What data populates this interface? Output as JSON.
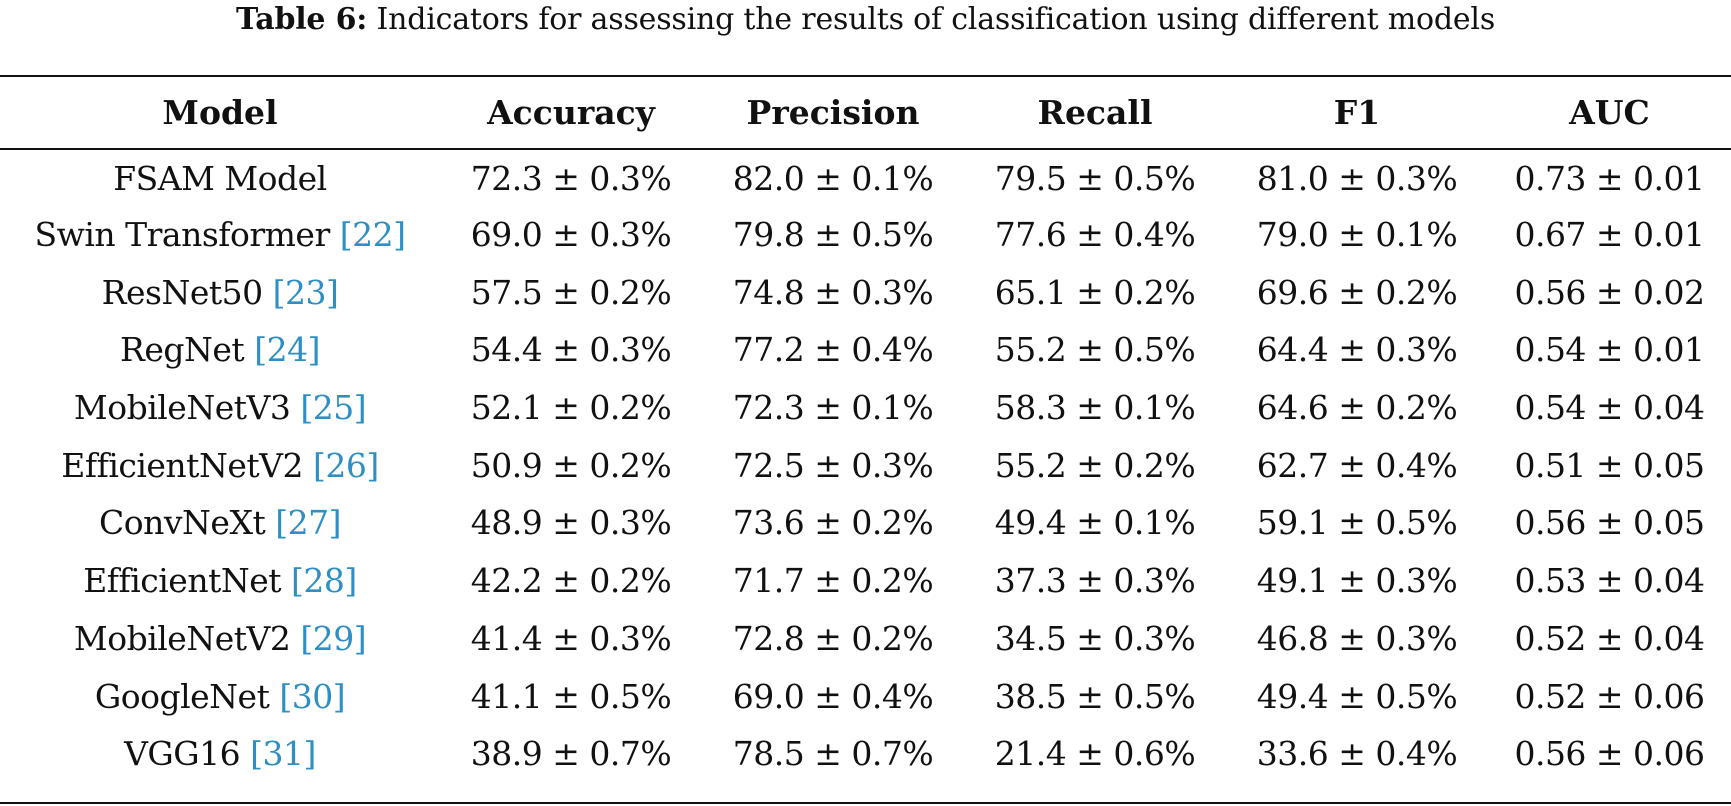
{
  "caption": {
    "label": "Table 6:",
    "text": "Indicators for assessing the results of classification using different models"
  },
  "table": {
    "headers": [
      "Model",
      "Accuracy",
      "Precision",
      "Recall",
      "F1",
      "AUC"
    ],
    "rows": [
      {
        "model": "FSAM Model",
        "ref": "",
        "accuracy": "72.3 ± 0.3%",
        "precision": "82.0 ± 0.1%",
        "recall": "79.5 ± 0.5%",
        "f1": "81.0 ± 0.3%",
        "auc": "0.73 ± 0.01"
      },
      {
        "model": "Swin Transformer",
        "ref": "22",
        "accuracy": "69.0 ± 0.3%",
        "precision": "79.8 ± 0.5%",
        "recall": "77.6 ± 0.4%",
        "f1": "79.0 ± 0.1%",
        "auc": "0.67 ± 0.01"
      },
      {
        "model": "ResNet50",
        "ref": "23",
        "accuracy": "57.5 ± 0.2%",
        "precision": "74.8 ± 0.3%",
        "recall": "65.1 ± 0.2%",
        "f1": "69.6 ± 0.2%",
        "auc": "0.56 ± 0.02"
      },
      {
        "model": "RegNet",
        "ref": "24",
        "accuracy": "54.4 ± 0.3%",
        "precision": "77.2 ± 0.4%",
        "recall": "55.2 ± 0.5%",
        "f1": "64.4 ± 0.3%",
        "auc": "0.54 ± 0.01"
      },
      {
        "model": "MobileNetV3",
        "ref": "25",
        "accuracy": "52.1 ± 0.2%",
        "precision": "72.3 ± 0.1%",
        "recall": "58.3 ± 0.1%",
        "f1": "64.6 ± 0.2%",
        "auc": "0.54 ± 0.04"
      },
      {
        "model": "EfficientNetV2",
        "ref": "26",
        "accuracy": "50.9 ± 0.2%",
        "precision": "72.5 ± 0.3%",
        "recall": "55.2 ± 0.2%",
        "f1": "62.7 ± 0.4%",
        "auc": "0.51 ± 0.05"
      },
      {
        "model": "ConvNeXt",
        "ref": "27",
        "accuracy": "48.9 ± 0.3%",
        "precision": "73.6 ± 0.2%",
        "recall": "49.4 ± 0.1%",
        "f1": "59.1 ± 0.5%",
        "auc": "0.56 ± 0.05"
      },
      {
        "model": "EfficientNet",
        "ref": "28",
        "accuracy": "42.2 ± 0.2%",
        "precision": "71.7 ± 0.2%",
        "recall": "37.3 ± 0.3%",
        "f1": "49.1 ± 0.3%",
        "auc": "0.53 ± 0.04"
      },
      {
        "model": "MobileNetV2",
        "ref": "29",
        "accuracy": "41.4 ± 0.3%",
        "precision": "72.8 ± 0.2%",
        "recall": "34.5 ± 0.3%",
        "f1": "46.8 ± 0.3%",
        "auc": "0.52 ± 0.04"
      },
      {
        "model": "GoogleNet",
        "ref": "30",
        "accuracy": "41.1 ± 0.5%",
        "precision": "69.0 ± 0.4%",
        "recall": "38.5 ± 0.5%",
        "f1": "49.4 ± 0.5%",
        "auc": "0.52 ± 0.06"
      },
      {
        "model": "VGG16",
        "ref": "31",
        "accuracy": "38.9 ± 0.7%",
        "precision": "78.5 ± 0.7%",
        "recall": "21.4 ± 0.6%",
        "f1": "33.6 ± 0.4%",
        "auc": "0.56 ± 0.06"
      }
    ]
  },
  "colors": {
    "text": "#111111",
    "reference_link": "#2e8fc4",
    "rule": "#111111"
  }
}
